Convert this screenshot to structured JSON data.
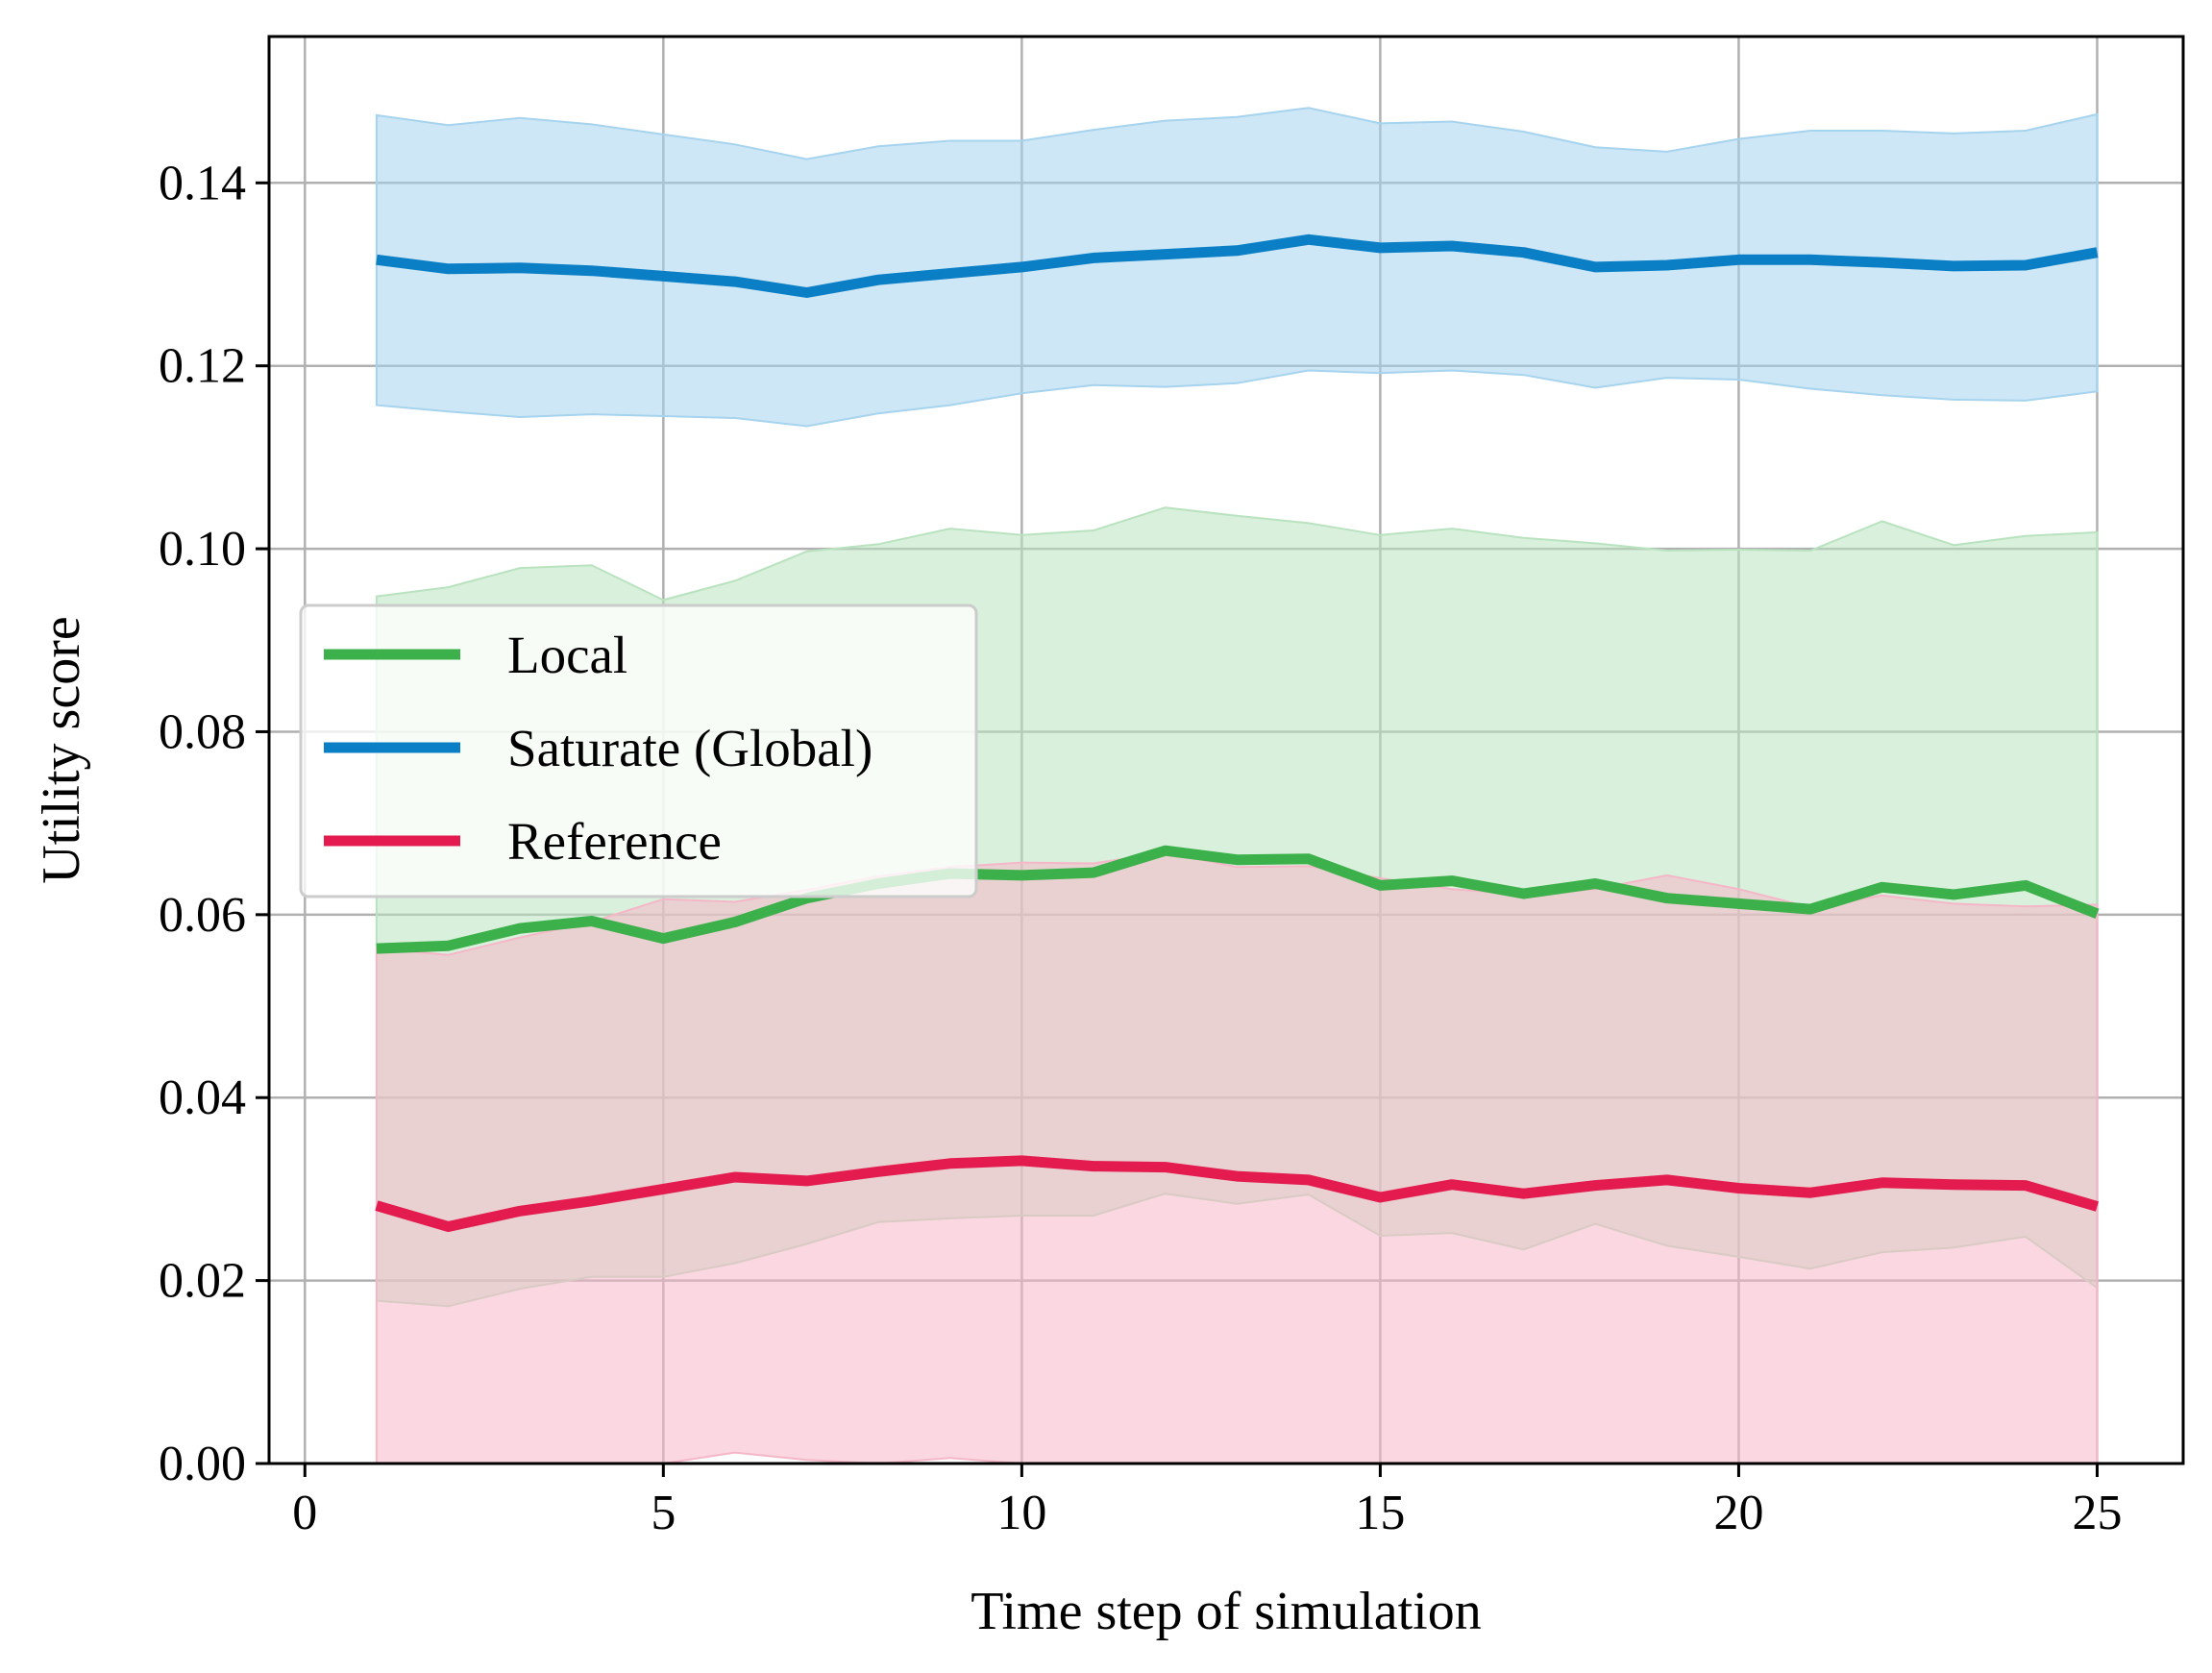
{
  "chart_data": {
    "type": "line",
    "title": "",
    "xlabel": "Time step of simulation",
    "ylabel": "Utility score",
    "xlim": [
      -0.5,
      26.2
    ],
    "ylim": [
      0.0,
      0.156
    ],
    "x_ticks": [
      0,
      5,
      10,
      15,
      20,
      25
    ],
    "x_tick_labels": [
      "0",
      "5",
      "10",
      "15",
      "20",
      "25"
    ],
    "y_ticks": [
      0.0,
      0.02,
      0.04,
      0.06,
      0.08,
      0.1,
      0.12,
      0.14
    ],
    "y_tick_labels": [
      "0.00",
      "0.02",
      "0.04",
      "0.06",
      "0.08",
      "0.10",
      "0.12",
      "0.14"
    ],
    "grid": true,
    "legend_position": "center-left",
    "x": [
      1,
      2,
      3,
      4,
      5,
      6,
      7,
      8,
      9,
      10,
      11,
      12,
      13,
      14,
      15,
      16,
      17,
      18,
      19,
      20,
      21,
      22,
      23,
      24,
      25
    ],
    "series": [
      {
        "name": "Local",
        "color": "#3cb04a",
        "band_color": "#b9e3bf",
        "values": [
          0.0563,
          0.0566,
          0.0585,
          0.0593,
          0.0574,
          0.0592,
          0.0618,
          0.0634,
          0.0645,
          0.0643,
          0.0646,
          0.067,
          0.066,
          0.0661,
          0.0632,
          0.0637,
          0.0623,
          0.0634,
          0.0618,
          0.0612,
          0.0606,
          0.063,
          0.0622,
          0.0632,
          0.0601
        ],
        "upper": [
          0.0948,
          0.0958,
          0.0979,
          0.0982,
          0.0944,
          0.0965,
          0.0997,
          0.1005,
          0.1022,
          0.1015,
          0.102,
          0.1045,
          0.1036,
          0.1028,
          0.1015,
          0.1022,
          0.1012,
          0.1006,
          0.0998,
          0.0999,
          0.0998,
          0.103,
          0.1004,
          0.1014,
          0.1018
        ],
        "lower": [
          0.0178,
          0.0172,
          0.0191,
          0.0204,
          0.0204,
          0.0219,
          0.024,
          0.0264,
          0.0268,
          0.0271,
          0.0271,
          0.0295,
          0.0284,
          0.0294,
          0.0249,
          0.0252,
          0.0234,
          0.0262,
          0.0238,
          0.0226,
          0.0213,
          0.0231,
          0.0236,
          0.0248,
          0.0192
        ]
      },
      {
        "name": "Saturate (Global)",
        "color": "#0a7fc6",
        "band_color": "#a6d3ee",
        "values": [
          0.1316,
          0.1306,
          0.1307,
          0.1304,
          0.1298,
          0.1292,
          0.128,
          0.1294,
          0.1301,
          0.1308,
          0.1318,
          0.1322,
          0.1326,
          0.1338,
          0.1329,
          0.1331,
          0.1324,
          0.1308,
          0.131,
          0.1316,
          0.1316,
          0.1313,
          0.1309,
          0.131,
          0.1324
        ],
        "upper": [
          0.1474,
          0.1463,
          0.1471,
          0.1464,
          0.1453,
          0.1442,
          0.1426,
          0.144,
          0.1446,
          0.1446,
          0.1458,
          0.1468,
          0.1472,
          0.1482,
          0.1465,
          0.1467,
          0.1456,
          0.1439,
          0.1434,
          0.1448,
          0.1457,
          0.1457,
          0.1454,
          0.1457,
          0.1475
        ],
        "lower": [
          0.1157,
          0.115,
          0.1144,
          0.1147,
          0.1145,
          0.1143,
          0.1134,
          0.1148,
          0.1157,
          0.117,
          0.1179,
          0.1177,
          0.1181,
          0.1195,
          0.1192,
          0.1195,
          0.119,
          0.1176,
          0.1187,
          0.1185,
          0.1175,
          0.1168,
          0.1163,
          0.1162,
          0.1172
        ]
      },
      {
        "name": "Reference",
        "color": "#e31b4e",
        "band_color": "#f5b7c8",
        "values": [
          0.0282,
          0.0259,
          0.0276,
          0.0287,
          0.03,
          0.0313,
          0.0309,
          0.0319,
          0.0328,
          0.0331,
          0.0325,
          0.0324,
          0.0314,
          0.031,
          0.0291,
          0.0305,
          0.0295,
          0.0304,
          0.031,
          0.0301,
          0.0296,
          0.0307,
          0.0305,
          0.0304,
          0.0281
        ],
        "upper": [
          0.0563,
          0.0556,
          0.0575,
          0.0592,
          0.0617,
          0.0614,
          0.0627,
          0.0642,
          0.0652,
          0.0657,
          0.0656,
          0.0668,
          0.0652,
          0.0653,
          0.064,
          0.0628,
          0.0622,
          0.0628,
          0.0643,
          0.0628,
          0.0608,
          0.0621,
          0.0612,
          0.0609,
          0.0611
        ],
        "lower": [
          0.0,
          0.0,
          0.0,
          0.0,
          0.0,
          0.0012,
          0.0004,
          0.0,
          0.0006,
          0.0,
          0.0,
          0.0,
          0.0,
          0.0,
          0.0,
          0.0,
          0.0,
          0.0,
          0.0,
          0.0,
          0.0,
          0.0,
          0.0,
          0.0,
          0.0
        ]
      }
    ]
  },
  "legend": {
    "items": [
      {
        "label": "Local",
        "color": "#3cb04a"
      },
      {
        "label": "Saturate (Global)",
        "color": "#0a7fc6"
      },
      {
        "label": "Reference",
        "color": "#e31b4e"
      }
    ]
  }
}
